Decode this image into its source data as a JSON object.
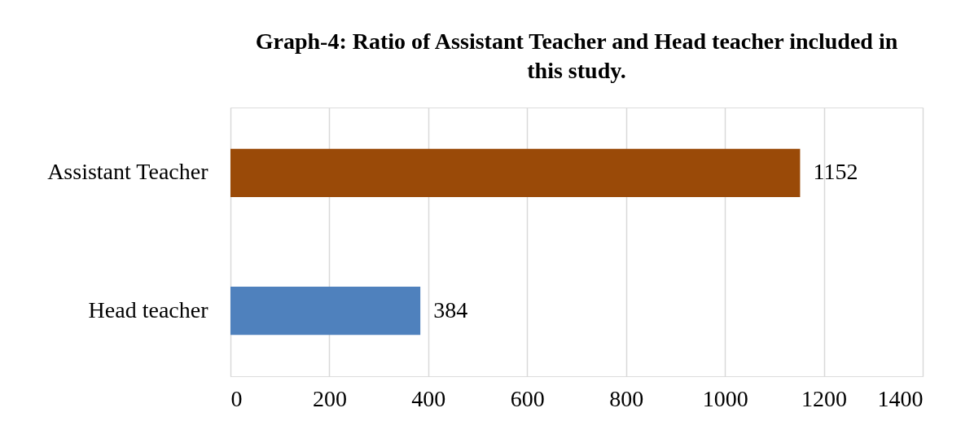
{
  "chart_data": {
    "type": "bar",
    "orientation": "horizontal",
    "title": "Graph-4: Ratio of Assistant Teacher and Head teacher included in this study.",
    "categories": [
      "Assistant Teacher",
      "Head teacher"
    ],
    "values": [
      1152,
      384
    ],
    "colors": [
      "#9a4a08",
      "#4f81bd"
    ],
    "xlim": [
      0,
      1400
    ],
    "xticks": [
      0,
      200,
      400,
      600,
      800,
      1000,
      1200,
      1400
    ],
    "grid": "x",
    "data_labels": true
  }
}
